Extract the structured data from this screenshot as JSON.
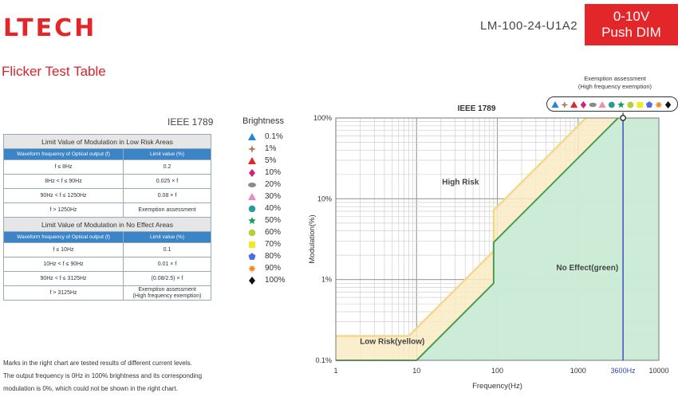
{
  "header": {
    "logo": "LTECH",
    "model": "LM-100-24-U1A2",
    "badge_line1": "0-10V",
    "badge_line2": "Push DIM",
    "section_title": "Flicker Test Table"
  },
  "left": {
    "ieee_label": "IEEE 1789",
    "low_risk_table": {
      "title": "Limit Value of Modulation in Low Risk Areas",
      "headers": [
        "Waveform frequency of Optical output (f)",
        "Limit value (%)"
      ],
      "rows": [
        [
          "f ≤ 8Hz",
          "0.2"
        ],
        [
          "8Hz < f ≤ 90Hz",
          "0.025 × f"
        ],
        [
          "90Hz < f ≤ 1250Hz",
          "0.08 × f"
        ],
        [
          "f > 1250Hz",
          "Exemption assessment"
        ]
      ]
    },
    "no_effect_table": {
      "title": "Limit Value of Modulation in No Effect Areas",
      "headers": [
        "Waveform frequency of Optical output (f)",
        "Limit value (%)"
      ],
      "rows": [
        [
          "f ≤ 10Hz",
          "0.1"
        ],
        [
          "10Hz < f ≤ 90Hz",
          "0.01 × f"
        ],
        [
          "90Hz < f ≤ 3125Hz",
          "(0.08/2.5) × f"
        ],
        [
          "f > 3125Hz",
          "Exemption assessment\n(High frequency exemption)"
        ]
      ]
    },
    "notes": [
      "Marks in the right chart are tested results of different current levels.",
      "The output frequency is 0Hz in 100% brightness and its corresponding",
      "modulation is 0%, which could not be shown in the right chart."
    ]
  },
  "brightness": {
    "title": "Brightness",
    "items": [
      {
        "label": "0.1%",
        "shape": "triangle",
        "color": "#1e88d2"
      },
      {
        "label": "1%",
        "shape": "star4",
        "color": "#b07a5a"
      },
      {
        "label": "5%",
        "shape": "triangle",
        "color": "#d92b2b"
      },
      {
        "label": "10%",
        "shape": "diamond",
        "color": "#d81f78"
      },
      {
        "label": "20%",
        "shape": "ellipse",
        "color": "#8a8a8a"
      },
      {
        "label": "30%",
        "shape": "triangle",
        "color": "#f08bb8"
      },
      {
        "label": "40%",
        "shape": "circle",
        "color": "#2a9a9a"
      },
      {
        "label": "50%",
        "shape": "star5",
        "color": "#14a05a"
      },
      {
        "label": "60%",
        "shape": "octagon",
        "color": "#b5cf3a"
      },
      {
        "label": "70%",
        "shape": "square",
        "color": "#f2ea1a"
      },
      {
        "label": "80%",
        "shape": "pentagon",
        "color": "#4b6ee0"
      },
      {
        "label": "90%",
        "shape": "star8",
        "color": "#f08a24"
      },
      {
        "label": "100%",
        "shape": "diamond",
        "color": "#111111"
      }
    ]
  },
  "exemption": {
    "title_line1": "Exemption assessment",
    "title_line2": "(High frequency exemption)"
  },
  "chart_data": {
    "type": "area",
    "title": "IEEE 1789",
    "xlabel": "Frequency(Hz)",
    "ylabel": "Modulation(%)",
    "x_scale": "log",
    "y_scale": "log",
    "xlim": [
      1,
      10000
    ],
    "ylim": [
      0.1,
      100
    ],
    "x_ticks": [
      1,
      10,
      100,
      1000,
      3600,
      10000
    ],
    "x_tick_labels": [
      "1",
      "10",
      "100",
      "1000",
      "3600Hz",
      "10000"
    ],
    "y_ticks": [
      0.1,
      1,
      10,
      100
    ],
    "y_tick_labels": [
      "0.1%",
      "1%",
      "10%",
      "100%"
    ],
    "grid": true,
    "series": [
      {
        "name": "Low Risk(yellow)",
        "color": "#f9ebc4",
        "edge": "#f4d88a",
        "x": [
          1,
          8,
          90,
          90,
          1250
        ],
        "y": [
          0.2,
          0.2,
          2.25,
          7.2,
          100
        ]
      },
      {
        "name": "No Effect(green)",
        "color": "#c6ebd8",
        "edge": "#4a9c52",
        "x": [
          1,
          10,
          90,
          90,
          3125
        ],
        "y": [
          0.1,
          0.1,
          0.9,
          2.88,
          100
        ]
      }
    ],
    "annotations": [
      {
        "text": "High Risk",
        "x": 35,
        "y": 15
      },
      {
        "text": "No Effect(green)",
        "x": 1300,
        "y": 1.3
      },
      {
        "text": "Low Risk(yellow)",
        "x": 5,
        "y": 0.16
      }
    ],
    "marker_line": {
      "x": 3600,
      "color": "#3344bb"
    },
    "test_point": {
      "x": 3600,
      "y": 100,
      "label": "Exemption assessment"
    }
  }
}
